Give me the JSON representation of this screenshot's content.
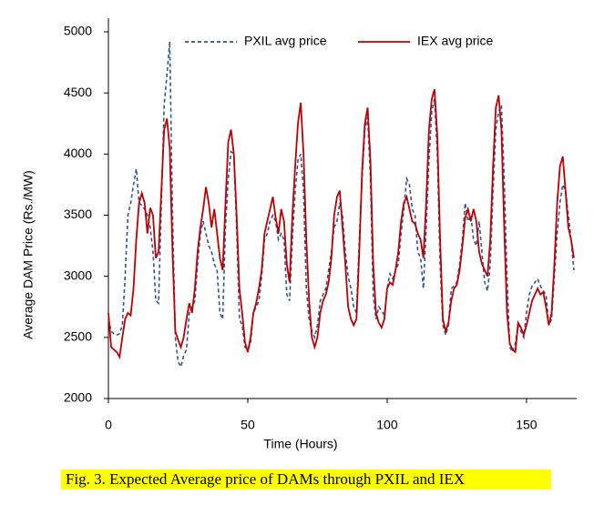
{
  "chart_data": {
    "type": "line",
    "caption": "Fig. 3.   Expected Average price of DAMs through PXIL and IEX",
    "xlabel": "Time (Hours)",
    "ylabel": "Average DAM Price (Rs./MW)",
    "xlim": [
      0,
      168
    ],
    "xticks": [
      0,
      50,
      100,
      150
    ],
    "ylim": [
      2000,
      5000
    ],
    "yticks": [
      2000,
      2500,
      3000,
      3500,
      4000,
      4500,
      5000
    ],
    "legend": "top",
    "x": [
      0,
      1,
      2,
      3,
      4,
      5,
      6,
      7,
      8,
      9,
      10,
      11,
      12,
      13,
      14,
      15,
      16,
      17,
      18,
      19,
      20,
      21,
      22,
      23,
      24,
      25,
      26,
      27,
      28,
      29,
      30,
      31,
      32,
      33,
      34,
      35,
      36,
      37,
      38,
      39,
      40,
      41,
      42,
      43,
      44,
      45,
      46,
      47,
      48,
      49,
      50,
      51,
      52,
      53,
      54,
      55,
      56,
      57,
      58,
      59,
      60,
      61,
      62,
      63,
      64,
      65,
      66,
      67,
      68,
      69,
      70,
      71,
      72,
      73,
      74,
      75,
      76,
      77,
      78,
      79,
      80,
      81,
      82,
      83,
      84,
      85,
      86,
      87,
      88,
      89,
      90,
      91,
      92,
      93,
      94,
      95,
      96,
      97,
      98,
      99,
      100,
      101,
      102,
      103,
      104,
      105,
      106,
      107,
      108,
      109,
      110,
      111,
      112,
      113,
      114,
      115,
      116,
      117,
      118,
      119,
      120,
      121,
      122,
      123,
      124,
      125,
      126,
      127,
      128,
      129,
      130,
      131,
      132,
      133,
      134,
      135,
      136,
      137,
      138,
      139,
      140,
      141,
      142,
      143,
      144,
      145,
      146,
      147,
      148,
      149,
      150,
      151,
      152,
      153,
      154,
      155,
      156,
      157,
      158,
      159,
      160,
      161,
      162,
      163,
      164,
      165,
      166,
      167
    ],
    "series": [
      {
        "name": "PXIL avg price",
        "color": "#2f5597",
        "dashed": true,
        "values": [
          2650,
          2550,
          2530,
          2520,
          2530,
          2600,
          3000,
          3500,
          3600,
          3750,
          3880,
          3600,
          3580,
          3550,
          3500,
          3400,
          3200,
          2800,
          2780,
          3600,
          4400,
          4650,
          4920,
          3500,
          2500,
          2300,
          2260,
          2350,
          2400,
          2700,
          2750,
          2800,
          3100,
          3350,
          3450,
          3350,
          3250,
          3200,
          3100,
          3050,
          2700,
          2650,
          3400,
          3800,
          4020,
          4000,
          3400,
          2650,
          2600,
          2420,
          2400,
          2450,
          2700,
          2750,
          2800,
          3000,
          3300,
          3350,
          3450,
          3500,
          3450,
          3300,
          3350,
          3300,
          2850,
          2800,
          3300,
          3700,
          3950,
          4000,
          3700,
          2900,
          2650,
          2550,
          2500,
          2600,
          2800,
          2850,
          2900,
          3050,
          3200,
          3400,
          3450,
          3600,
          3500,
          3200,
          3000,
          2900,
          2750,
          2700,
          3300,
          3800,
          4200,
          4300,
          3800,
          2850,
          2650,
          2750,
          2720,
          2680,
          2900,
          3020,
          2980,
          3050,
          3100,
          3350,
          3550,
          3800,
          3750,
          3550,
          3500,
          3200,
          3150,
          2900,
          3400,
          3950,
          4350,
          4450,
          4000,
          3100,
          2600,
          2520,
          2600,
          2900,
          2920,
          2950,
          3100,
          3300,
          3600,
          3450,
          3500,
          3300,
          3250,
          3450,
          3200,
          2950,
          2880,
          3100,
          3700,
          4200,
          4350,
          4400,
          3800,
          3000,
          2420,
          2380,
          2450,
          2600,
          2550,
          2500,
          2700,
          2850,
          2920,
          2950,
          2980,
          2920,
          2880,
          2850,
          2600,
          2650,
          3000,
          3350,
          3600,
          3750,
          3700,
          3500,
          3300,
          3050
        ]
      },
      {
        "name": "IEX avg price",
        "color": "#c00000",
        "dashed": false,
        "values": [
          2700,
          2420,
          2400,
          2380,
          2340,
          2500,
          2650,
          2700,
          2680,
          2900,
          3300,
          3600,
          3680,
          3600,
          3350,
          3560,
          3500,
          3150,
          3200,
          3700,
          4200,
          4290,
          4050,
          3200,
          2550,
          2480,
          2420,
          2500,
          2650,
          2780,
          2700,
          2900,
          3200,
          3400,
          3550,
          3730,
          3600,
          3400,
          3550,
          3350,
          3150,
          3050,
          3600,
          4100,
          4200,
          4000,
          3500,
          2900,
          2700,
          2460,
          2380,
          2500,
          2700,
          2780,
          2900,
          3050,
          3350,
          3450,
          3550,
          3650,
          3480,
          3350,
          3550,
          3450,
          3100,
          2950,
          3500,
          3900,
          4250,
          4420,
          4000,
          3300,
          2800,
          2500,
          2420,
          2500,
          2700,
          2800,
          2850,
          2950,
          3150,
          3500,
          3650,
          3700,
          3400,
          3100,
          2750,
          2650,
          2600,
          2650,
          3200,
          3850,
          4250,
          4380,
          3950,
          3100,
          2700,
          2620,
          2580,
          2650,
          2900,
          2950,
          2930,
          3050,
          3200,
          3450,
          3600,
          3650,
          3550,
          3450,
          3430,
          3350,
          3300,
          3150,
          3600,
          4200,
          4450,
          4530,
          4150,
          3300,
          2650,
          2550,
          2620,
          2800,
          2900,
          2930,
          3050,
          3250,
          3480,
          3550,
          3450,
          3550,
          3450,
          3200,
          3100,
          3050,
          3000,
          3300,
          3900,
          4380,
          4480,
          4200,
          3400,
          2700,
          2450,
          2400,
          2380,
          2620,
          2580,
          2520,
          2600,
          2700,
          2800,
          2850,
          2900,
          2850,
          2870,
          2750,
          2600,
          2700,
          3100,
          3600,
          3900,
          3980,
          3700,
          3400,
          3300,
          3150
        ]
      }
    ]
  }
}
